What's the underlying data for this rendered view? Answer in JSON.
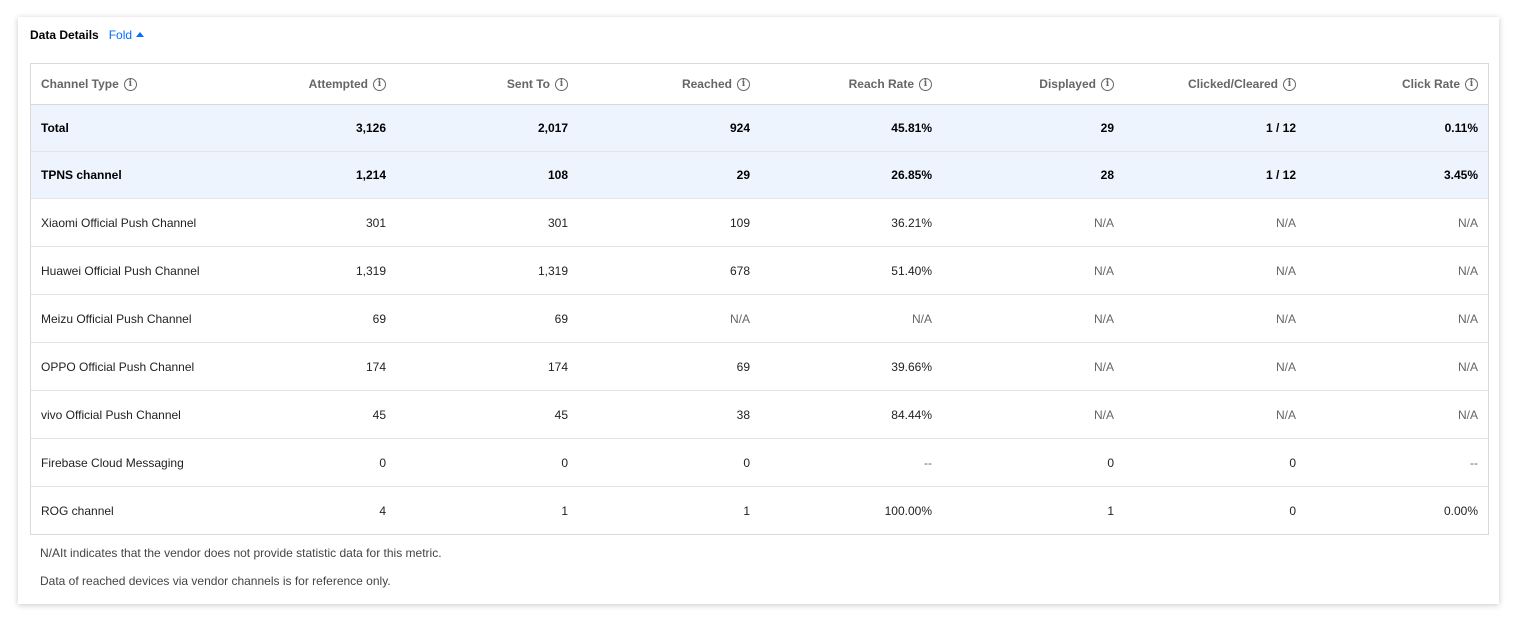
{
  "header": {
    "title": "Data Details",
    "fold_label": "Fold"
  },
  "table": {
    "columns": [
      {
        "label": "Channel Type",
        "icon": "info-icon"
      },
      {
        "label": "Attempted",
        "icon": "info-icon"
      },
      {
        "label": "Sent To",
        "icon": "info-icon"
      },
      {
        "label": "Reached",
        "icon": "info-icon"
      },
      {
        "label": "Reach Rate",
        "icon": "info-icon"
      },
      {
        "label": "Displayed",
        "icon": "info-icon"
      },
      {
        "label": "Clicked/Cleared",
        "icon": "info-icon"
      },
      {
        "label": "Click Rate",
        "icon": "info-icon"
      }
    ],
    "rows": [
      {
        "highlight": true,
        "cells": [
          "Total",
          "3,126",
          "2,017",
          "924",
          "45.81%",
          "29",
          "1 / 12",
          "0.11%"
        ]
      },
      {
        "highlight": true,
        "cells": [
          "TPNS channel",
          "1,214",
          "108",
          "29",
          "26.85%",
          "28",
          "1 / 12",
          "3.45%"
        ]
      },
      {
        "highlight": false,
        "cells": [
          "Xiaomi Official Push Channel",
          "301",
          "301",
          "109",
          "36.21%",
          "N/A",
          "N/A",
          "N/A"
        ]
      },
      {
        "highlight": false,
        "cells": [
          "Huawei Official Push Channel",
          "1,319",
          "1,319",
          "678",
          "51.40%",
          "N/A",
          "N/A",
          "N/A"
        ]
      },
      {
        "highlight": false,
        "cells": [
          "Meizu Official Push Channel",
          "69",
          "69",
          "N/A",
          "N/A",
          "N/A",
          "N/A",
          "N/A"
        ]
      },
      {
        "highlight": false,
        "cells": [
          "OPPO Official Push Channel",
          "174",
          "174",
          "69",
          "39.66%",
          "N/A",
          "N/A",
          "N/A"
        ]
      },
      {
        "highlight": false,
        "cells": [
          "vivo Official Push Channel",
          "45",
          "45",
          "38",
          "84.44%",
          "N/A",
          "N/A",
          "N/A"
        ]
      },
      {
        "highlight": false,
        "cells": [
          "Firebase Cloud Messaging",
          "0",
          "0",
          "0",
          "--",
          "0",
          "0",
          "--"
        ]
      },
      {
        "highlight": false,
        "cells": [
          "ROG channel",
          "4",
          "1",
          "1",
          "100.00%",
          "1",
          "0",
          "0.00%"
        ]
      }
    ]
  },
  "notes": [
    "N/AIt indicates that the vendor does not provide statistic data for this metric.",
    "Data of reached devices via vendor channels is for reference only."
  ]
}
